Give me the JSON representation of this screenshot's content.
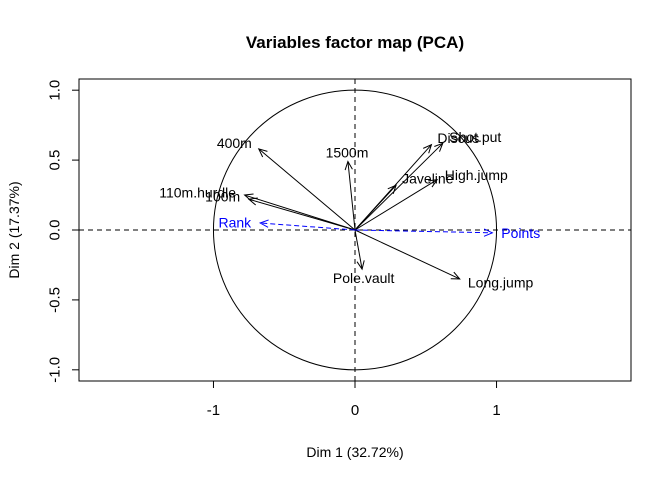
{
  "chart_data": {
    "type": "scatter",
    "subtype": "pca-variables-correlation-circle",
    "title": "Variables factor map (PCA)",
    "xlabel": "Dim 1 (32.72%)",
    "ylabel": "Dim 2 (17.37%)",
    "xlim": [
      -1.95,
      1.95
    ],
    "ylim": [
      -1.08,
      1.08
    ],
    "xticks": [
      -1,
      0,
      1
    ],
    "yticks": [
      -1.0,
      -0.5,
      0.0,
      0.5,
      1.0
    ],
    "xtick_labels": [
      "-1",
      "0",
      "1"
    ],
    "ytick_labels": [
      "-1.0",
      "-0.5",
      "0.0",
      "0.5",
      "1.0"
    ],
    "unit_circle": true,
    "reference_lines": "dashed lines at x = 0 and y = 0",
    "colors": {
      "active": "#000000",
      "supplementary": "#0000ff"
    },
    "series": [
      {
        "points": [
          {
            "label": "400m",
            "x": -0.68,
            "y": 0.58
          },
          {
            "label": "110m.hurdle",
            "x": -0.78,
            "y": 0.25
          },
          {
            "label": "100m",
            "x": -0.75,
            "y": 0.22
          },
          {
            "label": "1500m",
            "x": -0.05,
            "y": 0.49
          },
          {
            "label": "Discus",
            "x": 0.54,
            "y": 0.61
          },
          {
            "label": "Shot.put",
            "x": 0.62,
            "y": 0.62
          },
          {
            "label": "Javeline",
            "x": 0.29,
            "y": 0.32
          },
          {
            "label": "High.jump",
            "x": 0.58,
            "y": 0.36
          },
          {
            "label": "Pole.vault",
            "x": 0.05,
            "y": -0.28
          },
          {
            "label": "Long.jump",
            "x": 0.74,
            "y": -0.35
          }
        ]
      },
      {
        "color": "#0000ff",
        "style": "dashed",
        "points": [
          {
            "label": "Rank",
            "x": -0.67,
            "y": 0.05
          },
          {
            "label": "Points",
            "x": 0.97,
            "y": -0.02
          }
        ]
      }
    ]
  }
}
